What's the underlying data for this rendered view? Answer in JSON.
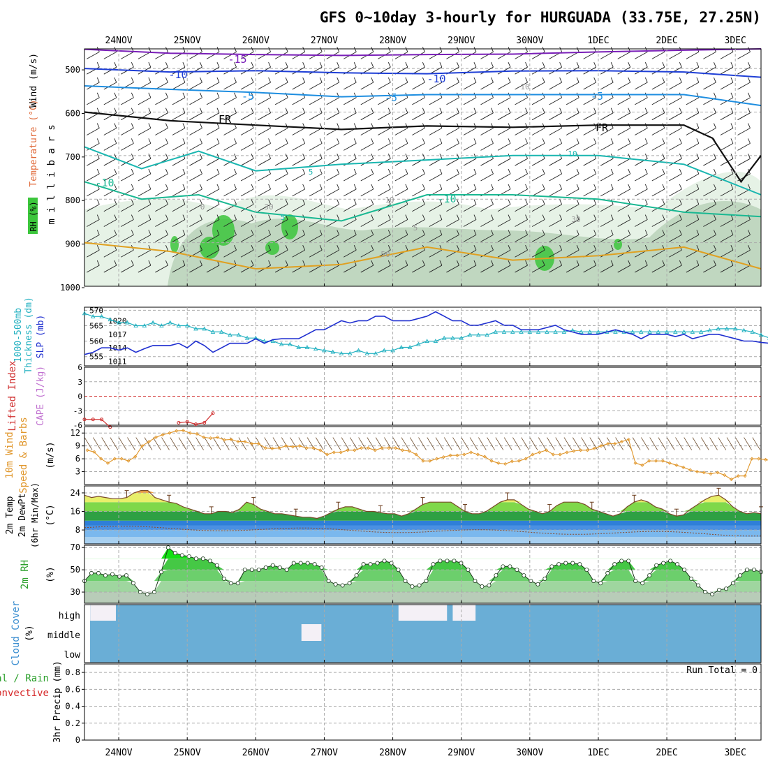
{
  "header": {
    "title": "GFS 0~10day 3-hourly for HURGUADA (33.75E, 27.25N)"
  },
  "colors": {
    "temp_m15": "#7a1fb8",
    "temp_m10": "#1f3fd6",
    "temp_m5": "#1e8ee0",
    "freezing": "#111111",
    "temp_p5": "#19b6b0",
    "temp_p10": "#19b892",
    "temp_p15": "#e0a020",
    "rh_light": "#e6f2e6",
    "rh_mid": "#b9d2b9",
    "rh_high": "#3cc63c",
    "slp": "#1f2fd0",
    "thickness": "#20b0c0",
    "lifted": "#d03030",
    "wind10m": "#e0962a",
    "cloud": "#6aaed6",
    "cloud_clear": "#f4f0f6",
    "rain": "#2ca02c",
    "convective": "#d62728"
  },
  "chart_data": [
    {
      "id": "upper_air",
      "type": "contour+barbs",
      "ylabel": "m i l l i b a r s",
      "left_labels": [
        "RH (%)",
        "Temperature (°C)",
        "Wind (m/s)"
      ],
      "x_day_labels": [
        "24NOV",
        "25NOV",
        "26NOV",
        "27NOV",
        "28NOV",
        "29NOV",
        "30NOV",
        "1DEC",
        "2DEC",
        "3DEC"
      ],
      "y_ticks": [
        500,
        600,
        700,
        800,
        900,
        1000
      ],
      "ylim": [
        455,
        1000
      ],
      "xlim_hours": [
        0,
        237
      ],
      "contour_labels": [
        "-15",
        "-10",
        "-10",
        "-5",
        "-5",
        "FR",
        "FR",
        "-5",
        "5",
        "-10",
        "-10",
        "10",
        "0",
        "5",
        "5",
        "30",
        "30",
        "50",
        "10",
        "10"
      ],
      "isotherms": [
        {
          "name": "-15",
          "x": [
            0,
            30,
            60,
            90,
            120,
            150,
            180,
            210,
            237
          ],
          "p": [
            456,
            465,
            468,
            470,
            468,
            467,
            462,
            458,
            455
          ]
        },
        {
          "name": "-10",
          "x": [
            0,
            30,
            60,
            90,
            120,
            150,
            180,
            210,
            237
          ],
          "p": [
            500,
            508,
            505,
            510,
            512,
            506,
            505,
            508,
            520
          ]
        },
        {
          "name": "-5",
          "x": [
            0,
            30,
            60,
            90,
            120,
            150,
            180,
            210,
            237
          ],
          "p": [
            540,
            548,
            555,
            565,
            560,
            560,
            560,
            560,
            585
          ]
        },
        {
          "name": "FR",
          "x": [
            0,
            30,
            60,
            90,
            120,
            150,
            180,
            210,
            220,
            230,
            237
          ],
          "p": [
            600,
            620,
            630,
            640,
            632,
            635,
            630,
            630,
            660,
            760,
            700
          ]
        },
        {
          "name": "5",
          "x": [
            0,
            20,
            40,
            60,
            90,
            120,
            150,
            180,
            210,
            237
          ],
          "p": [
            680,
            730,
            690,
            735,
            720,
            710,
            700,
            700,
            720,
            790
          ]
        },
        {
          "name": "10",
          "x": [
            0,
            20,
            40,
            60,
            90,
            120,
            150,
            180,
            210,
            237
          ],
          "p": [
            760,
            800,
            790,
            830,
            850,
            790,
            790,
            800,
            830,
            840
          ]
        },
        {
          "name": "15",
          "x": [
            0,
            30,
            60,
            90,
            120,
            150,
            180,
            210,
            237
          ],
          "p": [
            900,
            920,
            960,
            950,
            910,
            940,
            930,
            910,
            960
          ]
        }
      ]
    },
    {
      "id": "slp_thickness",
      "type": "line",
      "y_left_label": "1000-500mb\nThickness (dm)",
      "y_right_label": "SLP (mb)",
      "left_ticks": [
        555,
        560,
        565,
        570
      ],
      "right_ticks": [
        1011,
        1014,
        1017,
        1020
      ],
      "series": [
        {
          "name": "SLP (mb)",
          "axis": "right",
          "values": [
            1012.5,
            1013,
            1014,
            1014,
            1013.5,
            1014,
            1013,
            1013.8,
            1014.5,
            1014.5,
            1014.5,
            1015,
            1014,
            1015.5,
            1014.5,
            1013,
            1014,
            1015,
            1015,
            1015,
            1016,
            1015,
            1015.8,
            1016,
            1016,
            1016,
            1017,
            1018,
            1018,
            1019,
            1020,
            1019.5,
            1020,
            1020,
            1021,
            1021,
            1020,
            1020,
            1020,
            1020.5,
            1021,
            1022,
            1021,
            1020,
            1020,
            1019,
            1019,
            1019.5,
            1020,
            1019,
            1019,
            1018,
            1018,
            1018,
            1018.5,
            1019,
            1018,
            1017.5,
            1017,
            1017,
            1017,
            1017.5,
            1018,
            1017.5,
            1017,
            1016,
            1017,
            1017,
            1017,
            1016.5,
            1017,
            1016,
            1016.5,
            1017,
            1017,
            1016.5,
            1016,
            1015.5,
            1015.5,
            1015.2,
            1015,
            1016,
            1015,
            1014,
            1014,
            1014.5,
            1013,
            1012,
            1011.5,
            1012,
            1013,
            1014,
            1015,
            1015.5,
            1016,
            1017,
            1019
          ]
        },
        {
          "name": "1000-500mb Thickness",
          "axis": "left",
          "values": [
            569,
            568,
            568,
            567,
            566,
            566,
            565,
            565,
            566,
            565,
            566,
            565,
            565,
            564,
            564,
            563,
            563,
            562,
            562,
            561,
            561,
            560,
            560,
            559,
            559,
            558,
            558,
            557.5,
            557,
            556.5,
            556,
            556,
            557,
            556,
            556,
            557,
            557,
            558,
            558,
            559,
            560,
            560,
            561,
            561,
            561,
            562,
            562,
            562,
            563,
            563,
            563,
            563,
            563,
            563,
            563,
            563,
            563,
            563.5,
            563,
            563,
            563,
            563,
            563,
            563,
            563,
            563,
            563,
            563,
            563,
            563,
            563,
            563,
            563,
            563.5,
            564,
            564,
            564,
            563.5,
            563,
            562,
            561,
            560,
            560,
            559,
            558,
            557,
            557,
            557,
            556,
            556,
            555,
            555,
            554,
            554,
            553,
            553
          ]
        }
      ]
    },
    {
      "id": "instability",
      "type": "line",
      "y_left_label": "Lifted Index",
      "y_right_label": "CAPE (J/kg)",
      "y_ticks": [
        -6,
        -3,
        0,
        3,
        6
      ],
      "tick_labels": [
        "6",
        "3",
        "0",
        "-3",
        "-6"
      ],
      "series": [
        {
          "name": "Lifted Index",
          "points": [
            [
              0,
              4.8
            ],
            [
              3,
              4.8
            ],
            [
              6,
              4.8
            ],
            [
              9,
              6.4
            ]
          ]
        },
        {
          "name": "Lifted Index",
          "points": [
            [
              33,
              5.5
            ],
            [
              36,
              5.3
            ],
            [
              39,
              5.8
            ],
            [
              42,
              5.5
            ],
            [
              45,
              3.5
            ]
          ]
        }
      ]
    },
    {
      "id": "wind10m",
      "type": "line",
      "y_left_label": "10m Wind",
      "y_left_label2": "Speed & Barbs",
      "ylabel": "(m/s)",
      "y_ticks": [
        3,
        6,
        9,
        12
      ],
      "values": [
        8,
        7.6,
        6,
        5,
        6,
        6,
        5.5,
        6.5,
        9,
        10,
        11,
        11.6,
        12,
        12.5,
        12.6,
        12,
        11.8,
        11,
        10.8,
        11,
        10.4,
        10.5,
        10,
        10,
        9.5,
        9.5,
        8.5,
        8.4,
        8.5,
        9,
        8.8,
        9,
        8.5,
        8.5,
        8,
        7,
        7.5,
        7.5,
        8,
        8,
        8.5,
        8.5,
        8,
        8.5,
        8.5,
        8.5,
        8,
        7.8,
        7,
        5.5,
        5.5,
        6,
        6.4,
        6.8,
        6.8,
        7,
        7.5,
        7,
        6.5,
        5.5,
        5,
        4.8,
        5.4,
        5.5,
        6,
        7,
        7.5,
        8,
        7,
        7,
        7.5,
        7.8,
        8,
        8,
        8.4,
        9,
        9.5,
        9.5,
        10,
        10.5,
        5,
        4.5,
        5.5,
        5.5,
        5.5,
        5,
        4.5,
        4,
        3.4,
        3,
        2.8,
        2.5,
        2.8,
        2.2,
        1.2,
        2,
        2,
        6,
        6,
        5.8,
        5.5,
        6,
        6.5
      ]
    },
    {
      "id": "temp2m",
      "type": "area+line",
      "y_left_label": "2m Temp",
      "y_left_label2": "2m DewPt",
      "y_left_label3": "(6hr Min/Max)",
      "ylabel": "(°C)",
      "y_ticks": [
        8,
        16,
        24
      ],
      "temp": [
        23,
        22,
        22.5,
        22,
        21.5,
        21.5,
        22,
        24,
        25,
        25,
        22,
        21,
        20,
        19.5,
        18,
        17,
        16,
        15,
        15,
        16,
        16,
        15.5,
        17,
        20,
        19,
        17,
        16,
        15,
        15,
        14.5,
        14,
        13.5,
        13.5,
        13,
        14,
        15.5,
        17,
        18,
        18,
        17,
        16,
        16,
        15.5,
        15,
        15,
        14,
        15,
        17,
        19,
        20,
        20,
        20,
        20,
        18,
        16,
        15,
        15,
        16,
        18,
        20,
        21,
        21,
        19,
        17,
        16,
        15,
        16,
        18.5,
        20,
        20,
        20,
        19,
        17,
        16,
        15,
        14,
        15,
        18,
        20,
        21,
        20,
        18,
        17,
        15,
        14,
        14.5,
        17,
        19,
        21,
        22.5,
        23,
        21,
        18,
        16,
        15,
        15.5,
        15
      ]
    },
    {
      "id": "rh2m",
      "type": "area+line",
      "y_left_label": "2m RH",
      "ylabel": "(%)",
      "y_ticks": [
        30,
        50,
        70
      ],
      "values": [
        40,
        47,
        47,
        45,
        46,
        44,
        45,
        38,
        30,
        28,
        30,
        48,
        70,
        65,
        63,
        62,
        60,
        60,
        58,
        54,
        42,
        38,
        38,
        50,
        50,
        50,
        52,
        54,
        52,
        50,
        56,
        56,
        56,
        55,
        52,
        40,
        37,
        36,
        38,
        45,
        55,
        55,
        56,
        58,
        56,
        50,
        40,
        35,
        36,
        40,
        55,
        58,
        58,
        58,
        56,
        50,
        40,
        35,
        36,
        45,
        53,
        53,
        50,
        45,
        40,
        37,
        42,
        53,
        55,
        56,
        56,
        55,
        50,
        40,
        38,
        47,
        55,
        58,
        58,
        40,
        38,
        45,
        54,
        56,
        58,
        55,
        50,
        42,
        36,
        30,
        28,
        32,
        33,
        38,
        45,
        50,
        50,
        48
      ]
    },
    {
      "id": "cloud",
      "type": "bands",
      "y_left_label": "Cloud Cover",
      "ylabel": "(%)",
      "levels": [
        "high",
        "middle",
        "low"
      ],
      "clear_patches": [
        {
          "level": "high",
          "x_hours": [
            2,
            11
          ]
        },
        {
          "level": "high",
          "x_hours": [
            110,
            127
          ]
        },
        {
          "level": "high",
          "x_hours": [
            129,
            137
          ]
        },
        {
          "level": "middle",
          "x_hours": [
            76,
            83
          ]
        }
      ]
    },
    {
      "id": "precip",
      "type": "bar",
      "y_left_label": "Total / Rain",
      "y_left_label2": "Convective",
      "ylabel": "3hr Precip (mm)",
      "y_ticks": [
        0,
        0.2,
        0.4,
        0.6,
        0.8
      ],
      "ylim": [
        0,
        0.9
      ],
      "run_total_label": "Run Total = 0",
      "values": []
    }
  ]
}
